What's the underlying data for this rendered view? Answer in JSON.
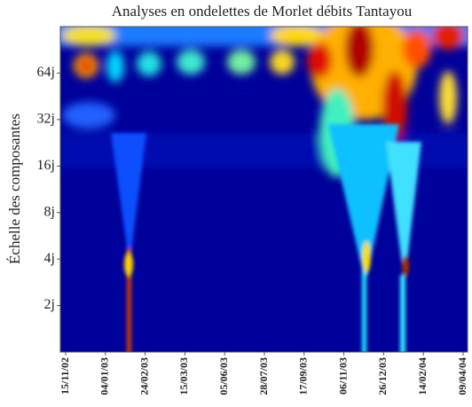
{
  "chart_data": {
    "type": "heatmap",
    "title": "Analyses en ondelettes de Morlet débits Tantayou",
    "y_label": "Échelle des composantes",
    "y_log_scale": true,
    "ylim": [
      1,
      128
    ],
    "yticks": [
      {
        "value": 2,
        "label": "2j"
      },
      {
        "value": 4,
        "label": "4j"
      },
      {
        "value": 8,
        "label": "8j"
      },
      {
        "value": 16,
        "label": "16j"
      },
      {
        "value": 32,
        "label": "32j"
      },
      {
        "value": 64,
        "label": "64j"
      }
    ],
    "categories": [
      "15/11/02",
      "04/01/03",
      "24/02/03",
      "15/03/03",
      "05/06/03",
      "28/07/03",
      "17/09/03",
      "06/11/03",
      "26/12/03",
      "14/02/04",
      "09/04/04"
    ]
  }
}
